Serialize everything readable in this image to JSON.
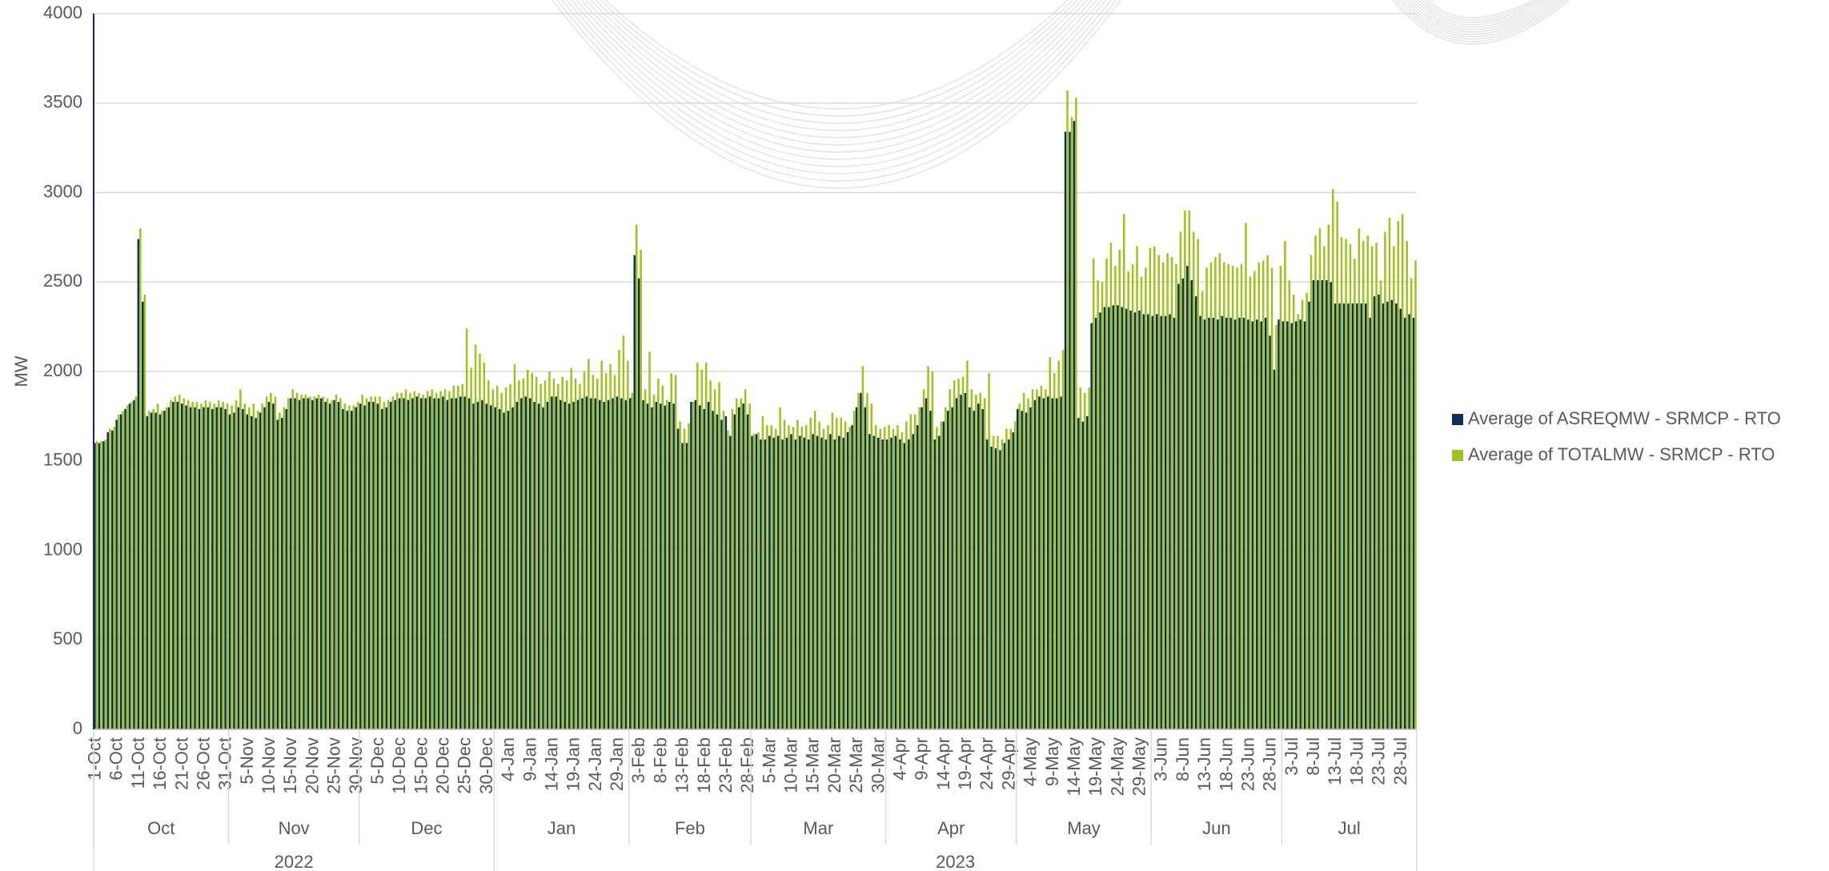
{
  "chart_data": {
    "type": "bar",
    "ylabel": "MW",
    "ylim": [
      0,
      4000
    ],
    "yticks": [
      0,
      500,
      1000,
      1500,
      2000,
      2500,
      3000,
      3500,
      4000
    ],
    "grid": true,
    "legend": "right",
    "categories": [
      "1-Oct",
      null,
      null,
      null,
      null,
      "6-Oct",
      null,
      null,
      null,
      null,
      "11-Oct",
      null,
      null,
      null,
      null,
      "16-Oct",
      null,
      null,
      null,
      null,
      "21-Oct",
      null,
      null,
      null,
      null,
      "26-Oct",
      null,
      null,
      null,
      null,
      "31-Oct",
      null,
      null,
      null,
      null,
      "5-Nov",
      null,
      null,
      null,
      null,
      "10-Nov",
      null,
      null,
      null,
      null,
      "15-Nov",
      null,
      null,
      null,
      null,
      "20-Nov",
      null,
      null,
      null,
      null,
      "25-Nov",
      null,
      null,
      null,
      null,
      "30-Nov",
      null,
      null,
      null,
      null,
      "5-Dec",
      null,
      null,
      null,
      null,
      "10-Dec",
      null,
      null,
      null,
      null,
      "15-Dec",
      null,
      null,
      null,
      null,
      "20-Dec",
      null,
      null,
      null,
      null,
      "25-Dec",
      null,
      null,
      null,
      null,
      "30-Dec",
      null,
      null,
      null,
      null,
      "4-Jan",
      null,
      null,
      null,
      null,
      "9-Jan",
      null,
      null,
      null,
      null,
      "14-Jan",
      null,
      null,
      null,
      null,
      "19-Jan",
      null,
      null,
      null,
      null,
      "24-Jan",
      null,
      null,
      null,
      null,
      "29-Jan",
      null,
      null,
      null,
      null,
      "3-Feb",
      null,
      null,
      null,
      null,
      "8-Feb",
      null,
      null,
      null,
      null,
      "13-Feb",
      null,
      null,
      null,
      null,
      "18-Feb",
      null,
      null,
      null,
      null,
      "23-Feb",
      null,
      null,
      null,
      null,
      "28-Feb",
      null,
      null,
      null,
      null,
      "5-Mar",
      null,
      null,
      null,
      null,
      "10-Mar",
      null,
      null,
      null,
      null,
      "15-Mar",
      null,
      null,
      null,
      null,
      "20-Mar",
      null,
      null,
      null,
      null,
      "25-Mar",
      null,
      null,
      null,
      null,
      "30-Mar",
      null,
      null,
      null,
      null,
      "4-Apr",
      null,
      null,
      null,
      null,
      "9-Apr",
      null,
      null,
      null,
      null,
      "14-Apr",
      null,
      null,
      null,
      null,
      "19-Apr",
      null,
      null,
      null,
      null,
      "24-Apr",
      null,
      null,
      null,
      null,
      "29-Apr",
      null,
      null,
      null,
      null,
      "4-May",
      null,
      null,
      null,
      null,
      "9-May",
      null,
      null,
      null,
      null,
      "14-May",
      null,
      null,
      null,
      null,
      "19-May",
      null,
      null,
      null,
      null,
      "24-May",
      null,
      null,
      null,
      null,
      "29-May",
      null,
      null,
      null,
      null,
      "3-Jun",
      null,
      null,
      null,
      null,
      "8-Jun",
      null,
      null,
      null,
      null,
      "13-Jun",
      null,
      null,
      null,
      null,
      "18-Jun",
      null,
      null,
      null,
      null,
      "23-Jun",
      null,
      null,
      null,
      null,
      "28-Jun",
      null,
      null,
      null,
      null,
      "3-Jul",
      null,
      null,
      null,
      null,
      "8-Jul",
      null,
      null,
      null,
      null,
      "13-Jul",
      null,
      null,
      null,
      null,
      "18-Jul",
      null,
      null,
      null,
      null,
      "23-Jul",
      null,
      null,
      null,
      null,
      "28-Jul",
      null,
      null,
      null
    ],
    "x_groups": [
      {
        "label": "2022",
        "months": [
          "Oct",
          "Nov",
          "Dec"
        ]
      },
      {
        "label": "2023",
        "months": [
          "Jan",
          "Feb",
          "Mar",
          "Apr",
          "May",
          "Jun",
          "Jul"
        ]
      }
    ],
    "series": [
      {
        "name": "Average of ASREQMW - SRMCP - RTO",
        "color": "#0f2d5c",
        "values": [
          1600,
          1600,
          1610,
          1660,
          1670,
          1730,
          1760,
          1790,
          1820,
          1840,
          2740,
          2390,
          1750,
          1770,
          1770,
          1760,
          1780,
          1800,
          1830,
          1830,
          1820,
          1810,
          1800,
          1800,
          1790,
          1800,
          1800,
          1790,
          1800,
          1800,
          1790,
          1760,
          1770,
          1800,
          1790,
          1760,
          1750,
          1740,
          1770,
          1800,
          1830,
          1820,
          1730,
          1740,
          1790,
          1850,
          1850,
          1840,
          1850,
          1850,
          1840,
          1850,
          1850,
          1830,
          1820,
          1840,
          1830,
          1790,
          1780,
          1780,
          1800,
          1820,
          1810,
          1830,
          1830,
          1820,
          1790,
          1800,
          1830,
          1840,
          1850,
          1850,
          1840,
          1850,
          1860,
          1850,
          1850,
          1860,
          1850,
          1850,
          1860,
          1840,
          1850,
          1850,
          1860,
          1860,
          1850,
          1820,
          1830,
          1840,
          1820,
          1810,
          1800,
          1790,
          1770,
          1780,
          1800,
          1830,
          1850,
          1860,
          1850,
          1830,
          1820,
          1800,
          1830,
          1860,
          1860,
          1840,
          1830,
          1820,
          1830,
          1840,
          1850,
          1860,
          1850,
          1850,
          1840,
          1830,
          1840,
          1850,
          1860,
          1850,
          1840,
          1850,
          2650,
          2520,
          1840,
          1820,
          1800,
          1830,
          1820,
          1810,
          1830,
          1820,
          1680,
          1600,
          1600,
          1830,
          1840,
          1810,
          1790,
          1830,
          1780,
          1760,
          1730,
          1750,
          1640,
          1760,
          1800,
          1820,
          1760,
          1640,
          1650,
          1620,
          1620,
          1640,
          1630,
          1640,
          1620,
          1630,
          1650,
          1620,
          1640,
          1630,
          1620,
          1650,
          1640,
          1630,
          1620,
          1650,
          1620,
          1640,
          1630,
          1660,
          1700,
          1800,
          1880,
          1800,
          1650,
          1640,
          1630,
          1620,
          1620,
          1630,
          1640,
          1620,
          1600,
          1620,
          1650,
          1700,
          1800,
          1850,
          1780,
          1620,
          1640,
          1720,
          1780,
          1800,
          1850,
          1870,
          1880,
          1800,
          1780,
          1820,
          1790,
          1620,
          1580,
          1570,
          1560,
          1600,
          1620,
          1660,
          1790,
          1780,
          1770,
          1800,
          1840,
          1860,
          1850,
          1860,
          1850,
          1850,
          1860,
          3340,
          3340,
          3400,
          1740,
          1720,
          1750,
          2270,
          2300,
          2330,
          2360,
          2360,
          2370,
          2370,
          2360,
          2350,
          2340,
          2330,
          2340,
          2320,
          2320,
          2310,
          2320,
          2310,
          2310,
          2320,
          2300,
          2490,
          2520,
          2590,
          2510,
          2420,
          2310,
          2290,
          2300,
          2300,
          2290,
          2310,
          2300,
          2300,
          2290,
          2300,
          2300,
          2290,
          2280,
          2290,
          2280,
          2300,
          2200,
          2010,
          2290,
          2280,
          2280,
          2270,
          2280,
          2290,
          2280,
          2390,
          2510,
          2510,
          2510,
          2510,
          2500,
          2380,
          2380,
          2380,
          2380,
          2380,
          2380,
          2380,
          2380,
          2300,
          2420,
          2430,
          2380,
          2390,
          2400,
          2380,
          2350,
          2300,
          2320,
          2300
        ]
      },
      {
        "name": "Average of TOTALMW - SRMCP - RTO",
        "color": "#9bc31c",
        "values": [
          1610,
          1610,
          1620,
          1680,
          1690,
          1760,
          1780,
          1810,
          1830,
          1860,
          2800,
          2430,
          1780,
          1790,
          1820,
          1780,
          1800,
          1840,
          1860,
          1870,
          1850,
          1840,
          1830,
          1830,
          1820,
          1840,
          1830,
          1820,
          1840,
          1830,
          1820,
          1810,
          1840,
          1900,
          1820,
          1800,
          1820,
          1780,
          1820,
          1860,
          1880,
          1860,
          1770,
          1800,
          1850,
          1900,
          1880,
          1870,
          1870,
          1860,
          1860,
          1870,
          1860,
          1850,
          1840,
          1870,
          1850,
          1820,
          1810,
          1810,
          1830,
          1870,
          1850,
          1860,
          1860,
          1860,
          1830,
          1840,
          1860,
          1880,
          1880,
          1900,
          1880,
          1890,
          1880,
          1870,
          1890,
          1900,
          1880,
          1890,
          1900,
          1890,
          1920,
          1920,
          1930,
          2240,
          2020,
          2150,
          2100,
          2050,
          1950,
          1900,
          1920,
          1880,
          1910,
          1930,
          2040,
          1950,
          1960,
          2010,
          1990,
          1970,
          1930,
          1950,
          2000,
          1960,
          1930,
          1970,
          1950,
          2020,
          1960,
          1930,
          2000,
          2070,
          1980,
          1960,
          2060,
          1990,
          2040,
          1980,
          2120,
          2200,
          2060,
          1880,
          2820,
          2680,
          1900,
          2110,
          1870,
          1960,
          1920,
          1840,
          1990,
          1980,
          1720,
          1680,
          1710,
          1830,
          2050,
          2010,
          2050,
          1950,
          1900,
          1940,
          1780,
          1670,
          1790,
          1850,
          1850,
          1900,
          1820,
          1650,
          1660,
          1750,
          1700,
          1700,
          1680,
          1800,
          1730,
          1700,
          1690,
          1730,
          1690,
          1700,
          1740,
          1780,
          1720,
          1680,
          1700,
          1770,
          1740,
          1740,
          1720,
          1690,
          1780,
          1880,
          2030,
          1880,
          1820,
          1700,
          1680,
          1690,
          1700,
          1680,
          1700,
          1660,
          1720,
          1760,
          1760,
          1800,
          1900,
          2030,
          2000,
          1690,
          1720,
          1800,
          1900,
          1950,
          1960,
          1970,
          2060,
          1900,
          1870,
          1880,
          1850,
          1990,
          1640,
          1640,
          1620,
          1680,
          1680,
          1720,
          1820,
          1880,
          1850,
          1900,
          1900,
          1920,
          1900,
          2080,
          1990,
          2060,
          2120,
          3570,
          3420,
          3530,
          1910,
          1880,
          1910,
          2630,
          2510,
          2500,
          2630,
          2720,
          2590,
          2680,
          2880,
          2560,
          2600,
          2700,
          2530,
          2580,
          2690,
          2700,
          2650,
          2610,
          2660,
          2640,
          2600,
          2780,
          2900,
          2900,
          2780,
          2740,
          2450,
          2580,
          2610,
          2640,
          2660,
          2610,
          2600,
          2590,
          2580,
          2600,
          2830,
          2530,
          2560,
          2610,
          2620,
          2650,
          2580,
          2260,
          2590,
          2730,
          2510,
          2430,
          2320,
          2400,
          2440,
          2650,
          2760,
          2800,
          2700,
          2820,
          3020,
          2950,
          2750,
          2740,
          2710,
          2630,
          2800,
          2730,
          2760,
          2700,
          2720,
          2510,
          2780,
          2860,
          2700,
          2840,
          2880,
          2730,
          2520,
          2620
        ]
      }
    ]
  }
}
